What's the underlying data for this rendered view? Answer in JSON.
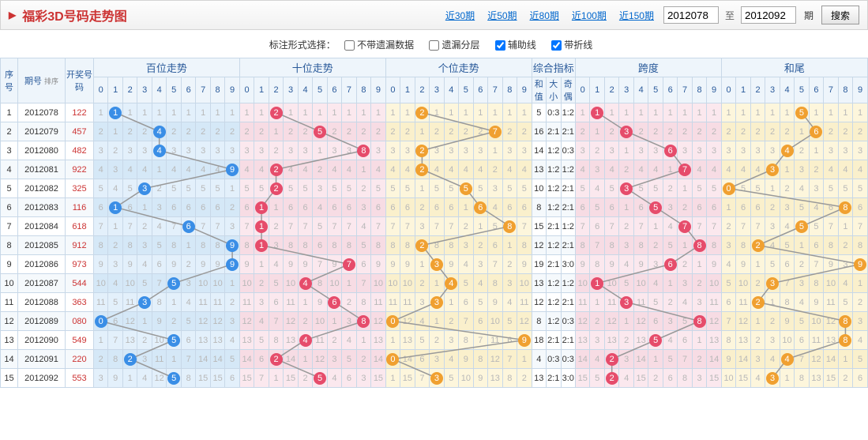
{
  "header": {
    "title": "福彩3D号码走势图",
    "periods": [
      "近30期",
      "近50期",
      "近80期",
      "近100期",
      "近150期"
    ],
    "from": "2012078",
    "to": "2012092",
    "sep": "至",
    "qi": "期",
    "search": "搜索"
  },
  "opts": {
    "label": "标注形式选择：",
    "items": [
      {
        "label": "不带遗漏数据",
        "checked": false
      },
      {
        "label": "遗漏分层",
        "checked": false
      },
      {
        "label": "辅助线",
        "checked": true
      },
      {
        "label": "带折线",
        "checked": true
      }
    ]
  },
  "head": {
    "c1": "序号",
    "c2": "期号",
    "sort": "排序",
    "c3": "开奖号码",
    "groups": [
      "百位走势",
      "十位走势",
      "个位走势",
      "综合指标",
      "跨度",
      "和尾"
    ],
    "zh": [
      "和值",
      "大小",
      "奇偶"
    ]
  },
  "digits": [
    "0",
    "1",
    "2",
    "3",
    "4",
    "5",
    "6",
    "7",
    "8",
    "9"
  ],
  "rows": [
    {
      "idx": 1,
      "issue": "2012078",
      "open": "122",
      "d": [
        1,
        2,
        2
      ],
      "hz": 5,
      "dx": "0:3",
      "jo": "1:2",
      "kd": 1,
      "hw": 5,
      "miss": {
        "bai": [
          1,
          0,
          1,
          1,
          1,
          1,
          1,
          1,
          1,
          1
        ],
        "shi": [
          1,
          1,
          0,
          1,
          1,
          1,
          1,
          1,
          1,
          1
        ],
        "ge": [
          1,
          1,
          0,
          1,
          1,
          1,
          1,
          1,
          1,
          1
        ],
        "kd": [
          1,
          0,
          1,
          1,
          1,
          1,
          1,
          1,
          1,
          1
        ],
        "hw": [
          1,
          1,
          1,
          1,
          1,
          0,
          1,
          1,
          1,
          1
        ]
      }
    },
    {
      "idx": 2,
      "issue": "2012079",
      "open": "457",
      "d": [
        4,
        5,
        7
      ],
      "hz": 16,
      "dx": "2:1",
      "jo": "2:1",
      "kd": 3,
      "hw": 6,
      "miss": {
        "bai": [
          2,
          1,
          2,
          2,
          0,
          2,
          2,
          2,
          2,
          2
        ],
        "shi": [
          2,
          2,
          1,
          2,
          2,
          0,
          2,
          2,
          2,
          2
        ],
        "ge": [
          2,
          2,
          1,
          2,
          2,
          2,
          2,
          0,
          2,
          2
        ],
        "kd": [
          2,
          1,
          2,
          0,
          2,
          2,
          2,
          2,
          2,
          2
        ],
        "hw": [
          2,
          2,
          2,
          2,
          2,
          1,
          0,
          2,
          2,
          2
        ]
      }
    },
    {
      "idx": 3,
      "issue": "2012080",
      "open": "482",
      "d": [
        4,
        8,
        2
      ],
      "hz": 14,
      "dx": "1:2",
      "jo": "0:3",
      "kd": 6,
      "hw": 4,
      "miss": {
        "bai": [
          3,
          2,
          3,
          3,
          0,
          3,
          3,
          3,
          3,
          3
        ],
        "shi": [
          3,
          3,
          2,
          3,
          3,
          1,
          3,
          3,
          0,
          3
        ],
        "ge": [
          3,
          3,
          0,
          3,
          3,
          3,
          3,
          1,
          3,
          3
        ],
        "kd": [
          3,
          2,
          3,
          1,
          3,
          3,
          0,
          3,
          3,
          3
        ],
        "hw": [
          3,
          3,
          3,
          3,
          0,
          2,
          1,
          3,
          3,
          3
        ]
      }
    },
    {
      "idx": 4,
      "issue": "2012081",
      "open": "922",
      "d": [
        9,
        2,
        2
      ],
      "hz": 13,
      "dx": "1:2",
      "jo": "1:2",
      "kd": 7,
      "hw": 3,
      "miss": {
        "bai": [
          4,
          3,
          4,
          4,
          1,
          4,
          4,
          4,
          4,
          0
        ],
        "shi": [
          4,
          4,
          0,
          4,
          4,
          2,
          4,
          4,
          1,
          4
        ],
        "ge": [
          4,
          4,
          0,
          4,
          4,
          4,
          4,
          2,
          4,
          4
        ],
        "kd": [
          4,
          3,
          4,
          2,
          4,
          4,
          1,
          0,
          4,
          4
        ],
        "hw": [
          4,
          4,
          4,
          0,
          1,
          3,
          2,
          4,
          4,
          4
        ]
      }
    },
    {
      "idx": 5,
      "issue": "2012082",
      "open": "325",
      "d": [
        3,
        2,
        5
      ],
      "hz": 10,
      "dx": "1:2",
      "jo": "2:1",
      "kd": 3,
      "hw": 0,
      "miss": {
        "bai": [
          5,
          4,
          5,
          0,
          2,
          5,
          5,
          5,
          5,
          1
        ],
        "shi": [
          5,
          5,
          0,
          5,
          5,
          3,
          5,
          5,
          2,
          5
        ],
        "ge": [
          5,
          5,
          1,
          5,
          5,
          0,
          5,
          3,
          5,
          5
        ],
        "kd": [
          5,
          4,
          5,
          0,
          5,
          5,
          2,
          1,
          5,
          5
        ],
        "hw": [
          0,
          5,
          5,
          1,
          2,
          4,
          3,
          5,
          5,
          5
        ]
      }
    },
    {
      "idx": 6,
      "issue": "2012083",
      "open": "116",
      "d": [
        1,
        1,
        6
      ],
      "hz": 8,
      "dx": "1:2",
      "jo": "2:1",
      "kd": 5,
      "hw": 8,
      "miss": {
        "bai": [
          6,
          0,
          6,
          1,
          3,
          6,
          6,
          6,
          6,
          2
        ],
        "shi": [
          6,
          0,
          1,
          6,
          6,
          4,
          6,
          6,
          3,
          6
        ],
        "ge": [
          6,
          6,
          2,
          6,
          6,
          1,
          0,
          4,
          6,
          6
        ],
        "kd": [
          6,
          5,
          6,
          1,
          6,
          0,
          3,
          2,
          6,
          6
        ],
        "hw": [
          1,
          6,
          6,
          2,
          3,
          5,
          4,
          6,
          0,
          6
        ]
      }
    },
    {
      "idx": 7,
      "issue": "2012084",
      "open": "618",
      "d": [
        6,
        1,
        8
      ],
      "hz": 15,
      "dx": "2:1",
      "jo": "1:2",
      "kd": 7,
      "hw": 5,
      "miss": {
        "bai": [
          7,
          1,
          7,
          2,
          4,
          7,
          0,
          7,
          7,
          3
        ],
        "shi": [
          7,
          0,
          2,
          7,
          7,
          5,
          7,
          7,
          4,
          7
        ],
        "ge": [
          7,
          7,
          3,
          7,
          7,
          2,
          1,
          5,
          0,
          7
        ],
        "kd": [
          7,
          6,
          7,
          2,
          7,
          1,
          4,
          0,
          7,
          7
        ],
        "hw": [
          2,
          7,
          7,
          3,
          4,
          0,
          5,
          7,
          1,
          7
        ]
      }
    },
    {
      "idx": 8,
      "issue": "2012085",
      "open": "912",
      "d": [
        9,
        1,
        2
      ],
      "hz": 12,
      "dx": "1:2",
      "jo": "2:1",
      "kd": 8,
      "hw": 2,
      "miss": {
        "bai": [
          8,
          2,
          8,
          3,
          5,
          8,
          1,
          8,
          8,
          0
        ],
        "shi": [
          8,
          0,
          3,
          8,
          8,
          6,
          8,
          8,
          5,
          8
        ],
        "ge": [
          8,
          8,
          0,
          8,
          8,
          3,
          2,
          6,
          1,
          8
        ],
        "kd": [
          8,
          7,
          8,
          3,
          8,
          2,
          5,
          1,
          0,
          8
        ],
        "hw": [
          3,
          8,
          0,
          4,
          5,
          1,
          6,
          8,
          2,
          8
        ]
      }
    },
    {
      "idx": 9,
      "issue": "2012086",
      "open": "973",
      "d": [
        9,
        7,
        3
      ],
      "hz": 19,
      "dx": "2:1",
      "jo": "3:0",
      "kd": 6,
      "hw": 9,
      "miss": {
        "bai": [
          9,
          3,
          9,
          4,
          6,
          9,
          2,
          9,
          9,
          0
        ],
        "shi": [
          9,
          1,
          4,
          9,
          9,
          7,
          9,
          0,
          6,
          9
        ],
        "ge": [
          9,
          9,
          1,
          0,
          9,
          4,
          3,
          7,
          2,
          9
        ],
        "kd": [
          9,
          8,
          9,
          4,
          9,
          3,
          0,
          2,
          1,
          9
        ],
        "hw": [
          4,
          9,
          1,
          5,
          6,
          2,
          7,
          9,
          3,
          0
        ]
      }
    },
    {
      "idx": 10,
      "issue": "2012087",
      "open": "544",
      "d": [
        5,
        4,
        4
      ],
      "hz": 13,
      "dx": "1:2",
      "jo": "1:2",
      "kd": 1,
      "hw": 3,
      "miss": {
        "bai": [
          10,
          4,
          10,
          5,
          7,
          0,
          3,
          10,
          10,
          1
        ],
        "shi": [
          10,
          2,
          5,
          10,
          0,
          8,
          10,
          1,
          7,
          10
        ],
        "ge": [
          10,
          10,
          2,
          1,
          0,
          5,
          4,
          8,
          3,
          10
        ],
        "kd": [
          10,
          0,
          10,
          5,
          10,
          4,
          1,
          3,
          2,
          10
        ],
        "hw": [
          5,
          10,
          2,
          0,
          7,
          3,
          8,
          10,
          4,
          1
        ]
      }
    },
    {
      "idx": 11,
      "issue": "2012088",
      "open": "363",
      "d": [
        3,
        6,
        3
      ],
      "hz": 12,
      "dx": "1:2",
      "jo": "2:1",
      "kd": 3,
      "hw": 2,
      "miss": {
        "bai": [
          11,
          5,
          11,
          0,
          8,
          1,
          4,
          11,
          11,
          2
        ],
        "shi": [
          11,
          3,
          6,
          11,
          1,
          9,
          0,
          2,
          8,
          11
        ],
        "ge": [
          11,
          11,
          3,
          0,
          1,
          6,
          5,
          9,
          4,
          11
        ],
        "kd": [
          11,
          1,
          11,
          0,
          11,
          5,
          2,
          4,
          3,
          11
        ],
        "hw": [
          6,
          11,
          0,
          1,
          8,
          4,
          9,
          11,
          5,
          2
        ]
      }
    },
    {
      "idx": 12,
      "issue": "2012089",
      "open": "080",
      "d": [
        0,
        8,
        0
      ],
      "hz": 8,
      "dx": "1:2",
      "jo": "0:3",
      "kd": 8,
      "hw": 8,
      "miss": {
        "bai": [
          0,
          6,
          12,
          1,
          9,
          2,
          5,
          12,
          12,
          3
        ],
        "shi": [
          12,
          4,
          7,
          12,
          2,
          10,
          1,
          3,
          0,
          12
        ],
        "ge": [
          0,
          12,
          4,
          1,
          2,
          7,
          6,
          10,
          5,
          12
        ],
        "kd": [
          12,
          2,
          12,
          1,
          12,
          6,
          3,
          5,
          0,
          12
        ],
        "hw": [
          7,
          12,
          1,
          2,
          9,
          5,
          10,
          12,
          0,
          3
        ]
      }
    },
    {
      "idx": 13,
      "issue": "2012090",
      "open": "549",
      "d": [
        5,
        4,
        9
      ],
      "hz": 18,
      "dx": "2:1",
      "jo": "2:1",
      "kd": 5,
      "hw": 8,
      "miss": {
        "bai": [
          1,
          7,
          13,
          2,
          10,
          0,
          6,
          13,
          13,
          4
        ],
        "shi": [
          13,
          5,
          8,
          13,
          0,
          11,
          2,
          4,
          1,
          13
        ],
        "ge": [
          1,
          13,
          5,
          2,
          3,
          8,
          7,
          11,
          6,
          0
        ],
        "kd": [
          13,
          3,
          13,
          2,
          13,
          0,
          4,
          6,
          1,
          13
        ],
        "hw": [
          8,
          13,
          2,
          3,
          10,
          6,
          11,
          13,
          0,
          4
        ]
      }
    },
    {
      "idx": 14,
      "issue": "2012091",
      "open": "220",
      "d": [
        2,
        2,
        0
      ],
      "hz": 4,
      "dx": "0:3",
      "jo": "0:3",
      "kd": 2,
      "hw": 4,
      "miss": {
        "bai": [
          2,
          8,
          0,
          3,
          11,
          1,
          7,
          14,
          14,
          5
        ],
        "shi": [
          14,
          6,
          0,
          14,
          1,
          12,
          3,
          5,
          2,
          14
        ],
        "ge": [
          0,
          14,
          6,
          3,
          4,
          9,
          8,
          12,
          7,
          1
        ],
        "kd": [
          14,
          4,
          0,
          3,
          14,
          1,
          5,
          7,
          2,
          14
        ],
        "hw": [
          9,
          14,
          3,
          4,
          0,
          7,
          12,
          14,
          1,
          5
        ]
      }
    },
    {
      "idx": 15,
      "issue": "2012092",
      "open": "553",
      "d": [
        5,
        5,
        3
      ],
      "hz": 13,
      "dx": "2:1",
      "jo": "3:0",
      "kd": 2,
      "hw": 3,
      "miss": {
        "bai": [
          3,
          9,
          1,
          4,
          12,
          0,
          8,
          15,
          15,
          6
        ],
        "shi": [
          15,
          7,
          1,
          15,
          2,
          0,
          4,
          6,
          3,
          15
        ],
        "ge": [
          1,
          15,
          7,
          0,
          5,
          10,
          9,
          13,
          8,
          2
        ],
        "kd": [
          15,
          5,
          0,
          4,
          15,
          2,
          6,
          8,
          3,
          15
        ],
        "hw": [
          10,
          15,
          4,
          0,
          1,
          8,
          13,
          15,
          2,
          6
        ]
      }
    }
  ],
  "style": {
    "ball_colors": {
      "blue": "#3a8ee6",
      "red": "#e64c6b",
      "orange": "#f0a030"
    },
    "line_color": "#999999",
    "line_width": 1.5
  }
}
